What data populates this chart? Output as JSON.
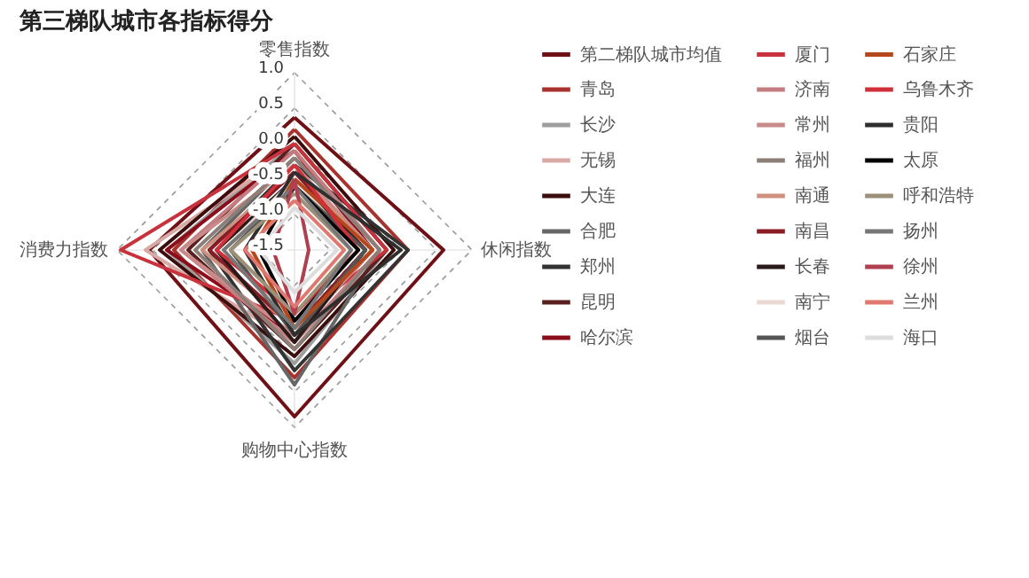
{
  "chart_data": {
    "type": "radar",
    "title": "第三梯队城市各指标得分",
    "categories": [
      "零售指数",
      "休闲指数",
      "购物中心指数",
      "消费力指数"
    ],
    "ylim": [
      -1.5,
      1.0
    ],
    "yticks": [
      {
        "value": -1.5,
        "label": "-1.5"
      },
      {
        "value": -1.0,
        "label": "-1.0"
      },
      {
        "value": -0.5,
        "label": "-0.5"
      },
      {
        "value": 0.0,
        "label": "0.0"
      },
      {
        "value": 0.5,
        "label": "0.5"
      },
      {
        "value": 1.0,
        "label": "1.0"
      }
    ],
    "grid": true,
    "legend": "right",
    "line_style": "solid",
    "series": [
      {
        "name": "第二梯队城市均值",
        "color": "#6e1016",
        "values": [
          0.37,
          0.6,
          0.85,
          0.55
        ]
      },
      {
        "name": "青岛",
        "color": "#a8322d",
        "values": [
          0.2,
          0.1,
          0.3,
          0.2
        ]
      },
      {
        "name": "长沙",
        "color": "#9e9e9e",
        "values": [
          0.0,
          -0.2,
          0.1,
          0.3
        ]
      },
      {
        "name": "无锡",
        "color": "#d8aaa5",
        "values": [
          -0.1,
          -0.3,
          -0.2,
          0.6
        ]
      },
      {
        "name": "大连",
        "color": "#3b0d0d",
        "values": [
          0.1,
          -0.1,
          0.0,
          0.4
        ]
      },
      {
        "name": "合肥",
        "color": "#666666",
        "values": [
          -0.2,
          -0.3,
          0.4,
          -0.2
        ]
      },
      {
        "name": "郑州",
        "color": "#333333",
        "values": [
          -0.3,
          0.1,
          0.2,
          -0.3
        ]
      },
      {
        "name": "昆明",
        "color": "#5a1f1f",
        "values": [
          0.0,
          -0.2,
          -0.1,
          0.0
        ]
      },
      {
        "name": "哈尔滨",
        "color": "#8b0d1a",
        "values": [
          -0.1,
          -0.4,
          -0.3,
          0.3
        ]
      },
      {
        "name": "厦门",
        "color": "#c8323c",
        "values": [
          0.0,
          -0.2,
          -0.5,
          0.95
        ]
      },
      {
        "name": "济南",
        "color": "#c47d80",
        "values": [
          -0.1,
          -0.3,
          -0.2,
          0.1
        ]
      },
      {
        "name": "常州",
        "color": "#c98a8a",
        "values": [
          -0.3,
          -0.4,
          -0.3,
          0.1
        ]
      },
      {
        "name": "福州",
        "color": "#8c7f78",
        "values": [
          -0.2,
          -0.3,
          -0.1,
          -0.1
        ]
      },
      {
        "name": "南通",
        "color": "#d09080",
        "values": [
          -0.4,
          -0.4,
          -0.4,
          -0.2
        ]
      },
      {
        "name": "南昌",
        "color": "#8a1c25",
        "values": [
          -0.4,
          -0.5,
          -0.4,
          -0.3
        ]
      },
      {
        "name": "长春",
        "color": "#2b1a1a",
        "values": [
          -0.5,
          -0.5,
          -0.2,
          -0.4
        ]
      },
      {
        "name": "南宁",
        "color": "#ead8d2",
        "values": [
          -0.5,
          -0.6,
          -0.5,
          -0.5
        ]
      },
      {
        "name": "烟台",
        "color": "#555555",
        "values": [
          -0.6,
          -0.5,
          -0.3,
          -0.6
        ]
      },
      {
        "name": "石家庄",
        "color": "#b5471c",
        "values": [
          -0.5,
          -0.4,
          -0.4,
          -0.9
        ]
      },
      {
        "name": "乌鲁木齐",
        "color": "#d0303a",
        "values": [
          -0.3,
          -0.6,
          -0.6,
          -0.4
        ]
      },
      {
        "name": "贵阳",
        "color": "#2e2e2e",
        "values": [
          -0.4,
          0.0,
          -0.3,
          -0.8
        ]
      },
      {
        "name": "太原",
        "color": "#000000",
        "values": [
          -0.6,
          -0.6,
          -0.5,
          -1.0
        ]
      },
      {
        "name": "呼和浩特",
        "color": "#9c9078",
        "values": [
          -0.7,
          -0.7,
          -0.6,
          -0.6
        ]
      },
      {
        "name": "扬州",
        "color": "#777777",
        "values": [
          -0.6,
          -0.7,
          -0.4,
          -0.5
        ]
      },
      {
        "name": "徐州",
        "color": "#b04050",
        "values": [
          -0.5,
          -1.3,
          -0.6,
          -1.2
        ]
      },
      {
        "name": "兰州",
        "color": "#e07870",
        "values": [
          -0.8,
          -0.8,
          -0.7,
          -0.8
        ]
      },
      {
        "name": "海口",
        "color": "#dddddd",
        "values": [
          -0.9,
          -0.9,
          -0.9,
          -1.0
        ]
      }
    ]
  }
}
